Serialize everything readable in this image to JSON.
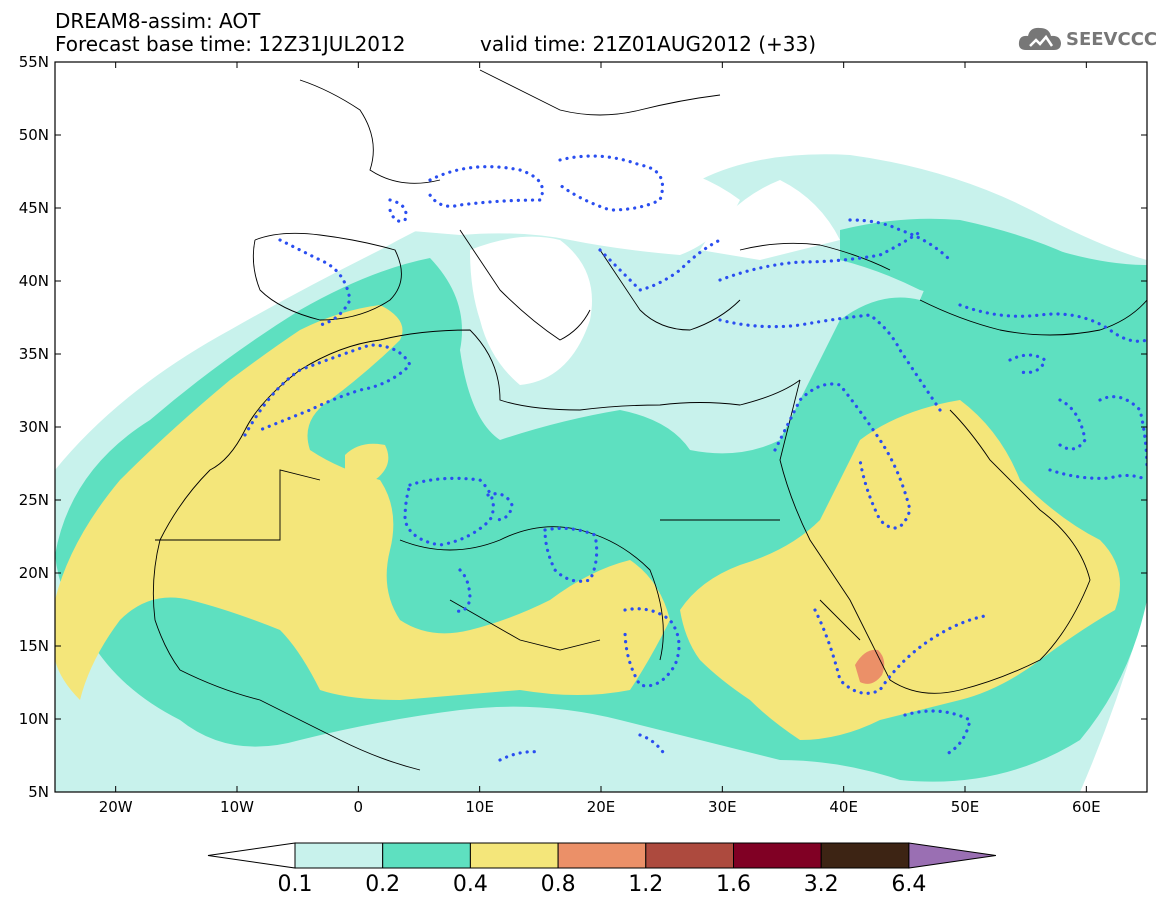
{
  "header": {
    "model_line": "DREAM8-assim: AOT",
    "base_time_line": "Forecast base time: 12Z31JUL2012",
    "valid_time_line": "valid time: 21Z01AUG2012 (+33)"
  },
  "logo": {
    "text": "SEEVCCC",
    "icon": "cloud-icon"
  },
  "map": {
    "lon_range": [
      -25,
      65
    ],
    "lat_range": [
      5,
      55
    ],
    "lat_ticks": [
      "55N",
      "50N",
      "45N",
      "40N",
      "35N",
      "30N",
      "25N",
      "20N",
      "15N",
      "10N",
      "5N"
    ],
    "lon_ticks": [
      "20W",
      "10W",
      "0",
      "10E",
      "20E",
      "30E",
      "40E",
      "50E",
      "60E"
    ]
  },
  "colorbar": {
    "labels": [
      "0.1",
      "0.2",
      "0.4",
      "0.8",
      "1.2",
      "1.6",
      "3.2",
      "6.4"
    ],
    "colors": [
      "#c8f2ec",
      "#5ee0c0",
      "#f4e67a",
      "#eb9068",
      "#ad4a3e",
      "#800024",
      "#3d2414",
      "#9a6fb3"
    ]
  },
  "colors": {
    "aot_01_02": "#c8f2ec",
    "aot_02_04": "#5ee0c0",
    "aot_04_08": "#f4e67a",
    "aot_08_12": "#eb9068",
    "contour_dotted": "#2a4ef0"
  }
}
